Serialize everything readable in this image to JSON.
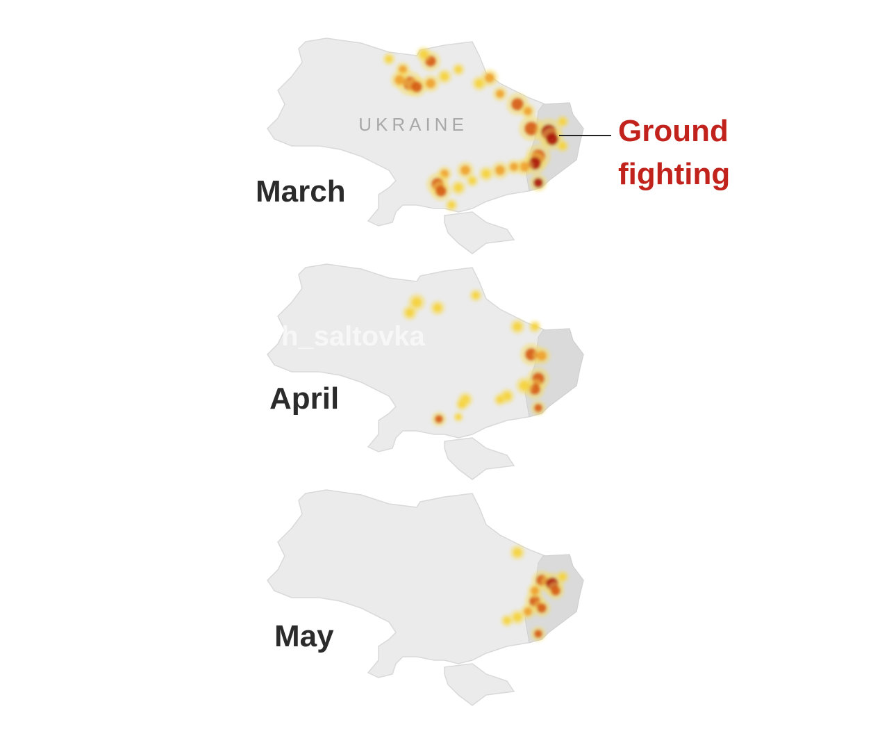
{
  "country_label": "UKRAINE",
  "annotation": {
    "lines": [
      "Ground",
      "fighting"
    ]
  },
  "watermark": "h_saltovka",
  "maps": [
    {
      "label": "March"
    },
    {
      "label": "April"
    },
    {
      "label": "May"
    }
  ]
}
